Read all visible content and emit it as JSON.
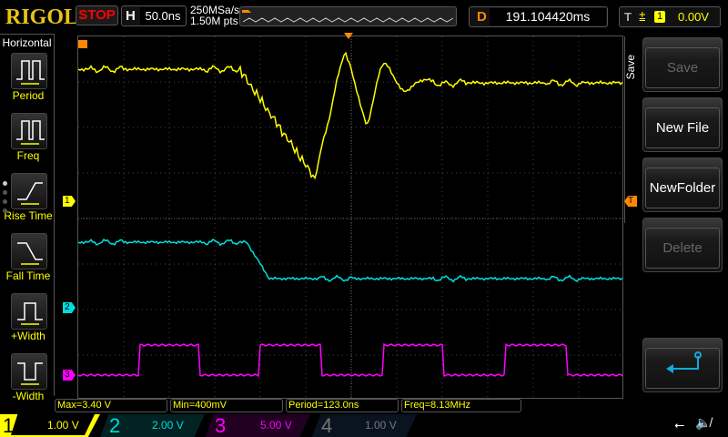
{
  "header": {
    "logo": "RIGOL",
    "run_state": "STOP",
    "h_label": "H",
    "timebase": "50.0ns",
    "sample_rate": "250MSa/s",
    "mem_depth": "1.50M pts",
    "d_label": "D",
    "delay": "191.104420ms",
    "t_label": "T",
    "trigger_source": "1",
    "trigger_level": "0.00V"
  },
  "sidebar": {
    "title": "Horizontal",
    "items": [
      {
        "label": "Period"
      },
      {
        "label": "Freq"
      },
      {
        "label": "Rise Time"
      },
      {
        "label": "Fall Time"
      },
      {
        "label": "+Width"
      },
      {
        "label": "-Width"
      }
    ]
  },
  "menu": {
    "title": "Save",
    "buttons": [
      {
        "label": "Save",
        "enabled": false
      },
      {
        "label": "New File",
        "enabled": true
      },
      {
        "label": "NewFolder",
        "enabled": true
      },
      {
        "label": "Delete",
        "enabled": false
      }
    ],
    "back_icon": "return-arrow-icon"
  },
  "markers": {
    "ch1": "1",
    "ch2": "2",
    "ch3": "3",
    "trigger": "T"
  },
  "measurements": [
    "Max=3.40 V",
    "Min=400mV",
    "Period=123.0ns",
    "Freq=8.13MHz"
  ],
  "channels": [
    {
      "num": "1",
      "scale": "1.00 V",
      "color": "#ffff00",
      "active": true
    },
    {
      "num": "2",
      "scale": "2.00 V",
      "color": "#00e0e0"
    },
    {
      "num": "3",
      "scale": "5.00 V",
      "color": "#ff00ff"
    },
    {
      "num": "4",
      "scale": "1.00 V",
      "color": "#777777"
    }
  ],
  "status_icons": [
    "usb-icon",
    "sound-muted-icon"
  ]
}
